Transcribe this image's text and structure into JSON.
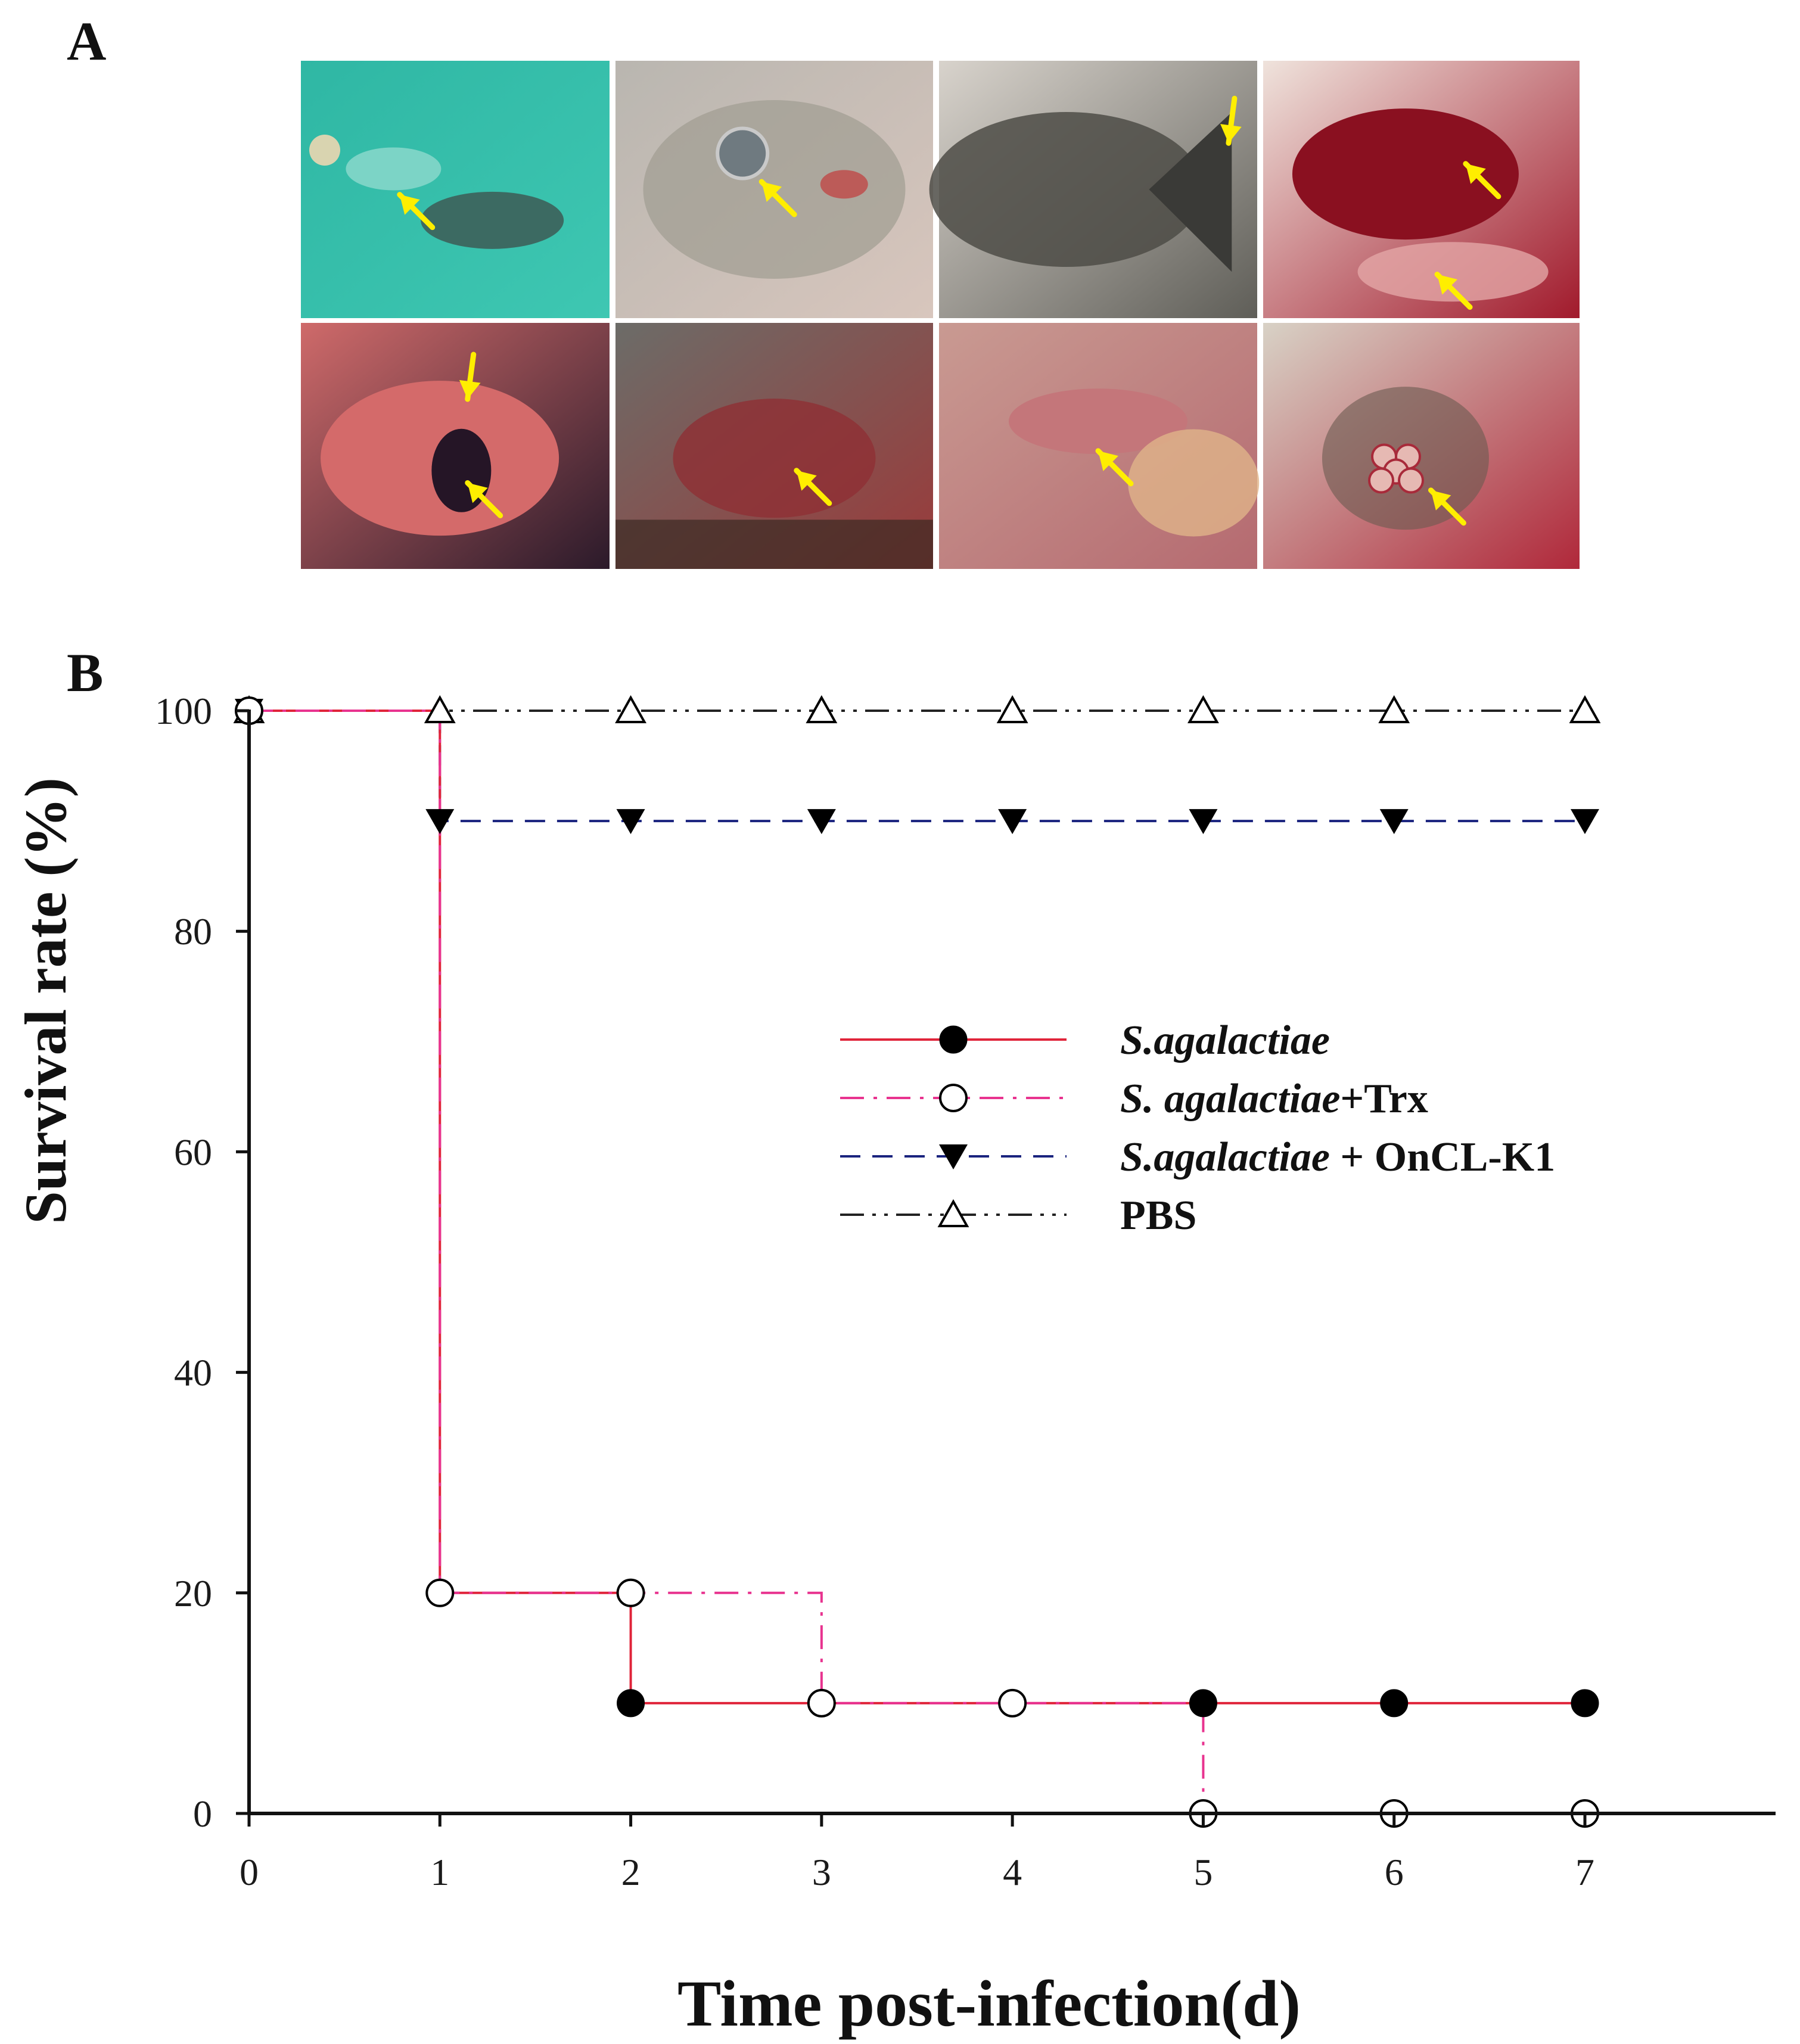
{
  "figure": {
    "panel_a_label": "A",
    "panel_b_label": "B"
  },
  "photos": [
    {
      "name": "photo-fish-in-tank",
      "colors": [
        "#2fb7a4",
        "#3ec7b2"
      ],
      "subject": "fish"
    },
    {
      "name": "photo-fish-head-eye",
      "colors": [
        "#b9b6b0",
        "#d8c6bd"
      ],
      "subject": "head"
    },
    {
      "name": "photo-fish-tail",
      "colors": [
        "#d8d3cc",
        "#5f5e58"
      ],
      "subject": "tail"
    },
    {
      "name": "photo-gills",
      "colors": [
        "#efe3dc",
        "#a11a2c"
      ],
      "subject": "gills"
    },
    {
      "name": "photo-liver-spleen",
      "colors": [
        "#cf6a6a",
        "#2b1a2a"
      ],
      "subject": "organ"
    },
    {
      "name": "photo-open-cavity",
      "colors": [
        "#6c6c68",
        "#9a3a3a"
      ],
      "subject": "cavity"
    },
    {
      "name": "photo-intestine",
      "colors": [
        "#c99a92",
        "#b56a70"
      ],
      "subject": "intestine"
    },
    {
      "name": "photo-brain",
      "colors": [
        "#d8d2c6",
        "#b0283a"
      ],
      "subject": "brain"
    }
  ],
  "colors": {
    "arrow": "#ffee00",
    "s_agalactiae": "#e0243a",
    "trx": "#e8338f",
    "oncl": "#1a237e",
    "pbs": "#222222",
    "axis": "#111111"
  },
  "chart_data": {
    "type": "line",
    "step": true,
    "xlabel": "Time post-infection(d)",
    "ylabel": "Survival rate (%)",
    "xlim": [
      0,
      8
    ],
    "ylim": [
      0,
      100
    ],
    "xticks": [
      0,
      1,
      2,
      3,
      4,
      5,
      6,
      7
    ],
    "yticks": [
      0,
      20,
      40,
      60,
      80,
      100
    ],
    "x": [
      0,
      1,
      2,
      3,
      4,
      5,
      6,
      7
    ],
    "series": [
      {
        "name": "S.agalactiae",
        "name_italic": "S.agalactiae",
        "name_suffix": "",
        "values": [
          100,
          20,
          10,
          10,
          10,
          10,
          10,
          10
        ],
        "marker": "filled-circle",
        "line": "solid",
        "color_key": "s_agalactiae"
      },
      {
        "name": "S. agalactiae+Trx",
        "name_italic": "S. agalactiae",
        "name_suffix": "+Trx",
        "values": [
          100,
          20,
          20,
          10,
          10,
          0,
          0,
          0
        ],
        "marker": "open-circle",
        "line": "dashdot",
        "color_key": "trx"
      },
      {
        "name": "S.agalactiae + OnCL-K1",
        "name_italic": "S.agalactiae",
        "name_suffix": " + OnCL-K1",
        "values": [
          100,
          90,
          90,
          90,
          90,
          90,
          90,
          90
        ],
        "marker": "filled-triangle-down",
        "line": "dashed",
        "color_key": "oncl"
      },
      {
        "name": "PBS",
        "name_italic": "",
        "name_suffix": "PBS",
        "values": [
          100,
          100,
          100,
          100,
          100,
          100,
          100,
          100
        ],
        "marker": "open-triangle-up",
        "line": "dashdotdot",
        "color_key": "pbs"
      }
    ],
    "legend_position": "center-right"
  }
}
